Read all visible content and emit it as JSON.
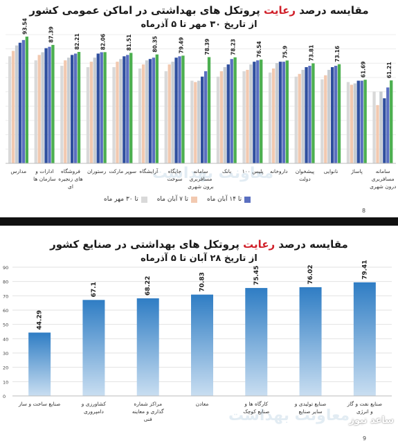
{
  "top": {
    "title_pre": "مقایسه درصد ",
    "title_hl": "رعایت",
    "title_post": " پروتکل های بهداشتی در اماکن عمومی کشور",
    "subtitle": "از تاریخ ۳۰ مهر تا ۵ آذرماه",
    "page_number": "8",
    "watermark": "معاونت بهداشت",
    "legend": [
      {
        "label": "تا ۱۴ آبان ماه",
        "color": "#5a6fc0"
      },
      {
        "label": "تا ۷ آبان ماه",
        "color": "#f2c9b0"
      },
      {
        "label": "تا ۳۰ مهر ماه",
        "color": "#d9d9d9"
      }
    ]
  },
  "bottom": {
    "title_pre": "مقایسه درصد ",
    "title_hl": "رعایت",
    "title_post": " پروتکل های بهداشتی در صنایع کشور",
    "subtitle": "از تاریخ ۲۸ آبان تا ۵ آذرماه",
    "page_number": "9",
    "watermark": "معاونت بهداشت",
    "stamp": "ساعد نیوز"
  },
  "chart_data": [
    {
      "type": "bar",
      "title": "مقایسه درصد رعایت پروتکل های بهداشتی در اماکن عمومی کشور",
      "subtitle": "از تاریخ ۳۰ مهر تا ۵ آذرماه",
      "categories": [
        "سامانه مسافربری درون شهری",
        "پاساژ",
        "نانوایی",
        "پیشخوان دولت",
        "داروخانه",
        "پلیس ۱۰۰",
        "بانک",
        "سامانه مسافربری برون شهری",
        "جایگاه سوخت",
        "آرایشگاه",
        "سوپر مارکت",
        "رستوران",
        "فروشگاه های زنجیره ای",
        "ادارات و سازمان ها",
        "مدارس"
      ],
      "latest_labels": [
        "61.21",
        "61.69",
        "73.16",
        "73.81",
        "75.9",
        "76.54",
        "78.23",
        "78.39",
        "79.49",
        "80.35",
        "81.51",
        "82.06",
        "82.21",
        "87.39",
        "93.54"
      ],
      "series": [
        {
          "color": "#d9d9d9",
          "values": [
            53,
            60,
            62,
            64,
            67,
            68,
            64,
            61,
            68,
            70,
            71,
            71,
            72,
            76,
            79
          ]
        },
        {
          "color": "#f2c9b0",
          "values": [
            43,
            58,
            65,
            66,
            70,
            69,
            68,
            60,
            73,
            73,
            75,
            75,
            76,
            80,
            83
          ]
        },
        {
          "color": "#c7ccd1",
          "values": [
            53,
            59,
            69,
            69,
            74,
            73,
            71,
            61,
            75,
            76,
            77,
            78,
            78,
            82,
            87
          ]
        },
        {
          "color": "#2f4f9e",
          "values": [
            48,
            61,
            71,
            71,
            75,
            75,
            73,
            64,
            78,
            77,
            79,
            81,
            80,
            85,
            89
          ]
        },
        {
          "color": "#5a6fc0",
          "values": [
            56,
            61,
            72,
            72,
            75,
            76,
            77,
            68,
            79,
            78,
            80,
            82,
            81,
            86,
            91
          ]
        },
        {
          "color": "#4caf50",
          "values": [
            61.21,
            61.69,
            73.16,
            73.81,
            75.9,
            76.54,
            78.23,
            78.39,
            79.49,
            80.35,
            81.51,
            82.06,
            82.21,
            87.39,
            93.54
          ]
        }
      ],
      "ylim": [
        0,
        95
      ],
      "grid": true
    },
    {
      "type": "bar",
      "title": "مقایسه درصد رعایت پروتکل های بهداشتی در صنایع کشور",
      "subtitle": "از تاریخ ۲۸ آبان تا ۵ آذرماه",
      "categories": [
        "صنایع ساخت و ساز",
        "کشاورزی و دامپروری",
        "مراکز شماره گذاری و معاینه فنی",
        "معادن",
        "کارگاه ها و صنایع کوچک",
        "صنایع تولیدی و سایر صنایع",
        "صنایع نفت و گاز و انرژی"
      ],
      "values": [
        44.29,
        67.1,
        68.22,
        70.83,
        75.45,
        76.02,
        79.41
      ],
      "value_labels": [
        "44.29",
        "67.1",
        "68.22",
        "70.83",
        "75.45",
        "76.02",
        "79.41"
      ],
      "yticks": [
        "0",
        "10",
        "20",
        "30",
        "40",
        "50",
        "60",
        "70",
        "80",
        "90"
      ],
      "ylim": [
        0,
        90
      ],
      "color": "#3d85c6",
      "grid": true
    }
  ]
}
